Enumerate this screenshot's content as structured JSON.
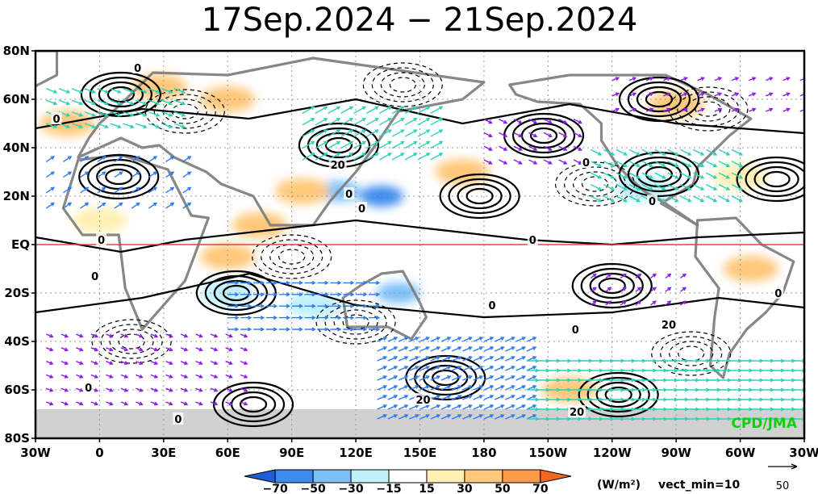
{
  "title": "17Sep.2024 − 21Sep.2024",
  "credit": "CPD/JMA",
  "colorbar": {
    "unit_label": "(W/m²)",
    "vect_note": "vect_min=10",
    "ticks": [
      "−70",
      "−50",
      "−30",
      "−15",
      "15",
      "30",
      "50",
      "70"
    ],
    "colors": [
      "#1e5fd8",
      "#3c8cf0",
      "#7cc0f8",
      "#bff0fc",
      "#ffffff",
      "#fff0b4",
      "#ffc87a",
      "#ff9a4a",
      "#f06a1e"
    ]
  },
  "ref_vector": {
    "value": "50"
  },
  "colors": {
    "equator": "#e04040",
    "vector_main": "#8a1ee6",
    "vector_strong": "#2f7cf0",
    "vector_strongest": "#2bd3b8",
    "credit": "#10d010",
    "land": "#7a7a7a"
  },
  "chart_data": {
    "type": "map",
    "lon_range": [
      -30,
      330
    ],
    "lat_range": [
      -80,
      80
    ],
    "x_ticks": [
      "30W",
      "0",
      "30E",
      "60E",
      "90E",
      "120E",
      "150E",
      "180",
      "150W",
      "120W",
      "90W",
      "60W",
      "30W"
    ],
    "x_tick_lons": [
      -30,
      0,
      30,
      60,
      90,
      120,
      150,
      180,
      210,
      240,
      270,
      300,
      330
    ],
    "y_ticks": [
      "80N",
      "60N",
      "40N",
      "20N",
      "EQ",
      "20S",
      "40S",
      "60S",
      "80S"
    ],
    "y_tick_lats": [
      80,
      60,
      40,
      20,
      0,
      -20,
      -40,
      -60,
      -80
    ],
    "grid": true,
    "shading": [
      {
        "lon": 132,
        "lat": 20,
        "value": -70
      },
      {
        "lon": 112,
        "lat": 22,
        "value": -50
      },
      {
        "lon": 140,
        "lat": -20,
        "value": -50
      },
      {
        "lon": 100,
        "lat": -25,
        "value": -30
      },
      {
        "lon": 60,
        "lat": -20,
        "value": -30
      },
      {
        "lon": 255,
        "lat": 23,
        "value": -30
      },
      {
        "lon": 140,
        "lat": 70,
        "value": -15
      },
      {
        "lon": -15,
        "lat": 50,
        "value": 30
      },
      {
        "lon": 28,
        "lat": 65,
        "value": 30
      },
      {
        "lon": 60,
        "lat": 60,
        "value": 30
      },
      {
        "lon": 95,
        "lat": 22,
        "value": 30
      },
      {
        "lon": 170,
        "lat": 30,
        "value": 30
      },
      {
        "lon": 75,
        "lat": 8,
        "value": 30
      },
      {
        "lon": 60,
        "lat": -5,
        "value": 30
      },
      {
        "lon": 270,
        "lat": 58,
        "value": 30
      },
      {
        "lon": 220,
        "lat": -60,
        "value": 30
      },
      {
        "lon": 305,
        "lat": -10,
        "value": 30
      },
      {
        "lon": 0,
        "lat": 10,
        "value": 15
      },
      {
        "lon": 300,
        "lat": 28,
        "value": 15
      }
    ],
    "contour_labels": [
      {
        "lon": 18,
        "lat": 73,
        "text": "0"
      },
      {
        "lon": -20,
        "lat": 52,
        "text": "0"
      },
      {
        "lon": 110,
        "lat": 33,
        "text": "20"
      },
      {
        "lon": 117,
        "lat": 21,
        "text": "0"
      },
      {
        "lon": 123,
        "lat": 15,
        "text": "0"
      },
      {
        "lon": 1,
        "lat": 2,
        "text": "0"
      },
      {
        "lon": -5,
        "lat": -59,
        "text": "0"
      },
      {
        "lon": -2,
        "lat": -13,
        "text": "0"
      },
      {
        "lon": 203,
        "lat": 2,
        "text": "0"
      },
      {
        "lon": 228,
        "lat": 34,
        "text": "0"
      },
      {
        "lon": 259,
        "lat": 18,
        "text": "0"
      },
      {
        "lon": 184,
        "lat": -25,
        "text": "0"
      },
      {
        "lon": 265,
        "lat": -33,
        "text": "20"
      },
      {
        "lon": 318,
        "lat": -20,
        "text": "0"
      },
      {
        "lon": 223,
        "lat": -35,
        "text": "0"
      },
      {
        "lon": 150,
        "lat": -64,
        "text": "20"
      },
      {
        "lon": 222,
        "lat": -69,
        "text": "20"
      },
      {
        "lon": 37,
        "lat": -72,
        "text": "0"
      }
    ],
    "centers": [
      {
        "lon": 9,
        "lat": 28,
        "sign": 1
      },
      {
        "lon": 10,
        "lat": 62,
        "sign": 1
      },
      {
        "lon": 112,
        "lat": 41,
        "sign": 1
      },
      {
        "lon": 208,
        "lat": 45,
        "sign": 1
      },
      {
        "lon": 262,
        "lat": 60,
        "sign": 1
      },
      {
        "lon": 262,
        "lat": 29,
        "sign": 1
      },
      {
        "lon": 317,
        "lat": 27,
        "sign": 1
      },
      {
        "lon": 178,
        "lat": 20,
        "sign": 1
      },
      {
        "lon": 64,
        "lat": -20,
        "sign": 1
      },
      {
        "lon": 162,
        "lat": -55,
        "sign": 1
      },
      {
        "lon": 243,
        "lat": -62,
        "sign": 1
      },
      {
        "lon": 240,
        "lat": -17,
        "sign": 1
      },
      {
        "lon": 72,
        "lat": -66,
        "sign": 1
      },
      {
        "lon": 40,
        "lat": 55,
        "sign": -1
      },
      {
        "lon": 142,
        "lat": 66,
        "sign": -1
      },
      {
        "lon": 120,
        "lat": -32,
        "sign": -1
      },
      {
        "lon": 15,
        "lat": -40,
        "sign": -1
      },
      {
        "lon": 277,
        "lat": -45,
        "sign": -1
      },
      {
        "lon": 285,
        "lat": 56,
        "sign": -1
      },
      {
        "lon": 232,
        "lat": 25,
        "sign": -1
      },
      {
        "lon": 90,
        "lat": -5,
        "sign": -1
      }
    ],
    "vector_regions": [
      {
        "lon": [
          -25,
          40
        ],
        "lat": [
          50,
          65
        ],
        "u": 8,
        "v": -3,
        "step": 6
      },
      {
        "lon": [
          -25,
          40
        ],
        "lat": [
          15,
          40
        ],
        "u": 6,
        "v": 4,
        "step": 8
      },
      {
        "lon": [
          95,
          160
        ],
        "lat": [
          35,
          58
        ],
        "u": 9,
        "v": 5,
        "step": 6
      },
      {
        "lon": [
          180,
          225
        ],
        "lat": [
          35,
          55
        ],
        "u": 6,
        "v": -3,
        "step": 7
      },
      {
        "lon": [
          230,
          300
        ],
        "lat": [
          20,
          42
        ],
        "u": 8,
        "v": -4,
        "step": 6
      },
      {
        "lon": [
          240,
          330
        ],
        "lat": [
          55,
          70
        ],
        "u": 5,
        "v": 2,
        "step": 8
      },
      {
        "lon": [
          60,
          130
        ],
        "lat": [
          -35,
          -15
        ],
        "u": 8,
        "v": 0,
        "step": 6
      },
      {
        "lon": [
          -25,
          70
        ],
        "lat": [
          -65,
          -35
        ],
        "u": 5,
        "v": -2,
        "step": 7
      },
      {
        "lon": [
          130,
          200
        ],
        "lat": [
          -72,
          -40
        ],
        "u": 7,
        "v": 3,
        "step": 5
      },
      {
        "lon": [
          200,
          330
        ],
        "lat": [
          -72,
          -48
        ],
        "u": 9,
        "v": 0,
        "step": 5
      },
      {
        "lon": [
          230,
          275
        ],
        "lat": [
          -25,
          -10
        ],
        "u": 4,
        "v": 3,
        "step": 7
      }
    ]
  }
}
